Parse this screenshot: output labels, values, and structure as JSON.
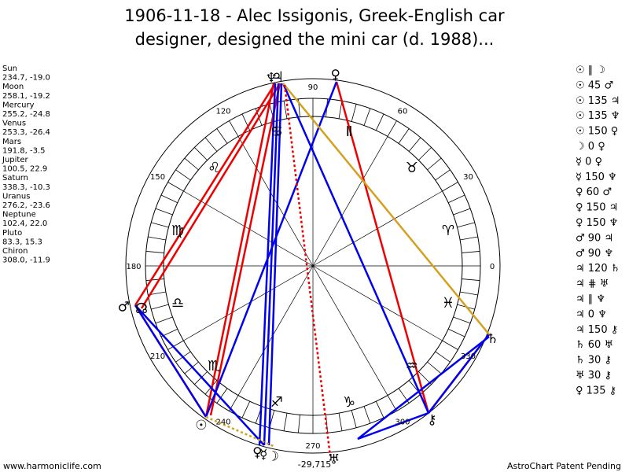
{
  "header": {
    "title_lines": [
      "1906-11-18 - Alec Issigonis, Greek-English car",
      "designer, designed the mini car (d. 1988)..."
    ]
  },
  "planets": [
    {
      "name": "Sun",
      "coords": "234.7, -19.0",
      "glyph": "☉"
    },
    {
      "name": "Moon",
      "coords": "258.1, -19.2",
      "glyph": "☽"
    },
    {
      "name": "Mercury",
      "coords": "255.2, -24.8",
      "glyph": "☿"
    },
    {
      "name": "Venus",
      "coords": "253.3, -26.4",
      "glyph": "♀"
    },
    {
      "name": "Mars",
      "coords": "191.8, -3.5",
      "glyph": "♂"
    },
    {
      "name": "Jupiter",
      "coords": "100.5, 22.9",
      "glyph": "♃"
    },
    {
      "name": "Saturn",
      "coords": "338.3, -10.3",
      "glyph": "♄"
    },
    {
      "name": "Uranus",
      "coords": "276.2, -23.6",
      "glyph": "♅"
    },
    {
      "name": "Neptune",
      "coords": "102.4, 22.0",
      "glyph": "♆"
    },
    {
      "name": "Pluto",
      "coords": "83.3, 15.3",
      "glyph": "♀"
    },
    {
      "name": "Chiron",
      "coords": "308.0, -11.9",
      "glyph": "⚷"
    }
  ],
  "node_glyph": "☊",
  "signs": [
    "♈",
    "♉",
    "Ⅱ",
    "♋",
    "♌",
    "♍",
    "♎",
    "♏",
    "♐",
    "♑",
    "♒",
    "♓"
  ],
  "degree_labels": [
    0,
    30,
    60,
    90,
    120,
    150,
    180,
    210,
    240,
    270,
    300,
    330
  ],
  "bottom_value": "-29,715",
  "aspects": [
    "☉ ∥ ☽",
    "☉ 45 ♂",
    "☉ 135 ♃",
    "☉ 135 ♆",
    "☉ 150 ♀",
    "☽ 0 ♀",
    "☿ 0 ♀",
    "☿ 150 ♆",
    "♀ 60 ♂",
    "♀ 150 ♃",
    "♀ 150 ♆",
    "♂ 90 ♃",
    "♂ 90 ♆",
    "♃ 120 ♄",
    "♃ ⋕ ♅",
    "♃ ∥ ♆",
    "♃ 0 ♆",
    "♃ 150 ⚷",
    "♄ 60 ♅",
    "♄ 30 ⚷",
    "♅ 30 ⚷",
    "♀ 135 ⚷"
  ],
  "footer": {
    "left": "www.harmoniclife.com",
    "right": "AstroChart Patent Pending"
  }
}
